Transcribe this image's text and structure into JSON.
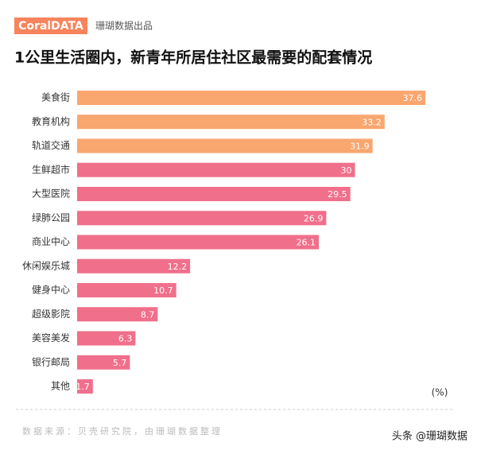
{
  "chart_data": {
    "type": "bar",
    "brand": "CoralDATA",
    "brand_note": "珊瑚数据出品",
    "title": "1公里生活圈内，新青年所居住社区最需要的配套情况",
    "categories": [
      "美食街",
      "教育机构",
      "轨道交通",
      "生鲜超市",
      "大型医院",
      "绿肺公园",
      "商业中心",
      "休闲娱乐城",
      "健身中心",
      "超级影院",
      "美容美发",
      "银行邮局",
      "其他"
    ],
    "values": [
      37.6,
      33.2,
      31.9,
      30,
      29.5,
      26.9,
      26.1,
      12.2,
      10.7,
      8.7,
      6.3,
      5.7,
      1.7
    ],
    "colors": [
      "#f9a66f",
      "#f9a66f",
      "#f9a66f",
      "#f06f8b",
      "#f06f8b",
      "#f06f8b",
      "#f06f8b",
      "#f06f8b",
      "#f06f8b",
      "#f06f8b",
      "#f06f8b",
      "#f06f8b",
      "#f06f8b"
    ],
    "xlim": [
      0,
      40
    ],
    "unit_label": "(%)",
    "source": "数据来源：贝壳研究院，由珊瑚数据整理",
    "footer": "头条 @珊瑚数据"
  }
}
